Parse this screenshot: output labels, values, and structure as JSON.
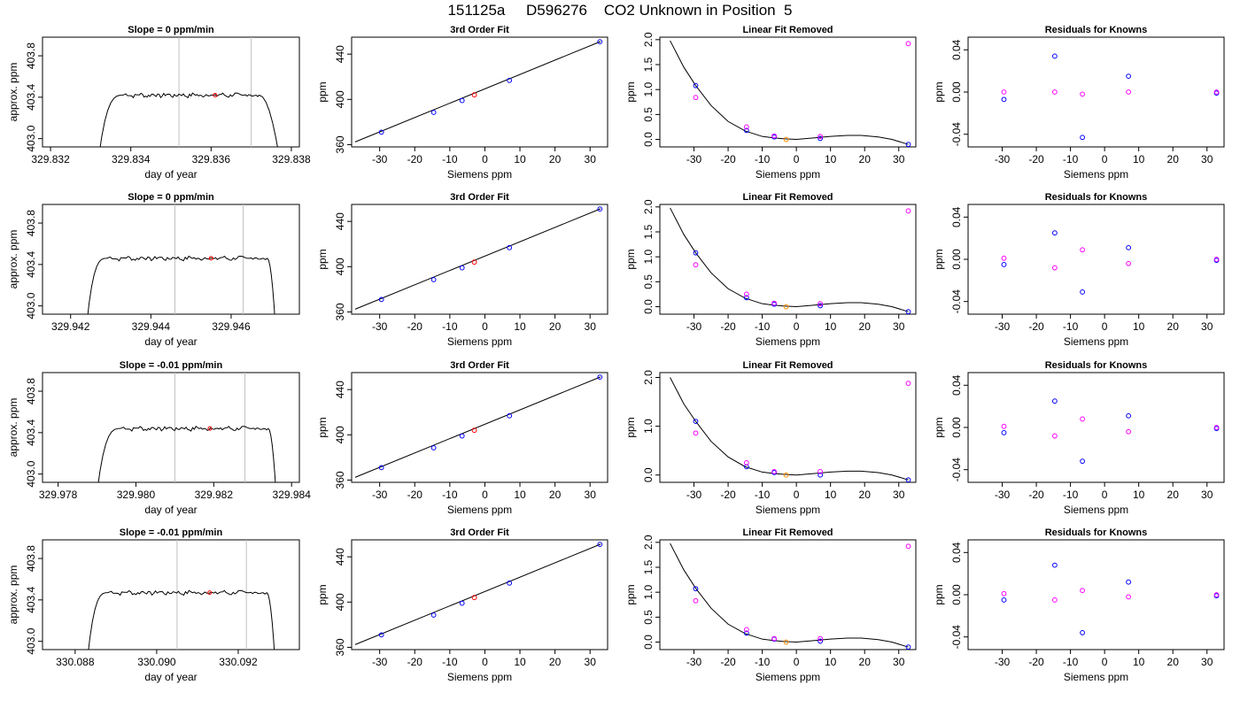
{
  "figure": {
    "title": "151125a     D596276    CO2 Unknown in Position  5"
  },
  "chart_data": [
    {
      "type": "line",
      "panel": "raw-trace",
      "row": 1,
      "title": "Slope =  0  ppm/min",
      "xlabel": "day of year",
      "ylabel": "approx. ppm",
      "xlim": [
        329.8318,
        329.8382
      ],
      "ylim": [
        402.92,
        403.98
      ],
      "xticks": [
        "329.832",
        "329.834",
        "329.836",
        "329.838"
      ],
      "xtick_values": [
        329.832,
        329.834,
        329.836,
        329.838
      ],
      "yticks": [
        "403.0",
        "403.4",
        "403.8"
      ],
      "ytick_values": [
        403.0,
        403.4,
        403.8
      ],
      "trace": {
        "x_start": 329.8332,
        "x_end": 329.8377,
        "plateau": 403.42,
        "rise_end": 329.8338,
        "fall_start": 329.8372
      },
      "vlines": [
        329.8352,
        329.837
      ],
      "marker": {
        "x": 329.8361,
        "y": 403.42
      }
    },
    {
      "type": "line",
      "panel": "raw-trace",
      "row": 2,
      "title": "Slope =  0  ppm/min",
      "xlabel": "day of year",
      "ylabel": "approx. ppm",
      "xlim": [
        329.9413,
        329.9477
      ],
      "ylim": [
        402.92,
        403.98
      ],
      "xticks": [
        "329.942",
        "329.944",
        "329.946"
      ],
      "xtick_values": [
        329.942,
        329.944,
        329.946
      ],
      "yticks": [
        "403.0",
        "403.4",
        "403.8"
      ],
      "ytick_values": [
        403.0,
        403.4,
        403.8
      ],
      "trace": {
        "x_start": 329.9424,
        "x_end": 329.9471,
        "plateau": 403.46,
        "rise_end": 329.9429,
        "fall_start": 329.9469
      },
      "vlines": [
        329.9446,
        329.9463
      ],
      "marker": {
        "x": 329.9455,
        "y": 403.46
      }
    },
    {
      "type": "line",
      "panel": "raw-trace",
      "row": 3,
      "title": "Slope =  -0.01  ppm/min",
      "xlabel": "day of year",
      "ylabel": "approx. ppm",
      "xlim": [
        329.9776,
        329.9842
      ],
      "ylim": [
        402.92,
        403.98
      ],
      "xticks": [
        "329.978",
        "329.980",
        "329.982",
        "329.984"
      ],
      "xtick_values": [
        329.978,
        329.98,
        329.982,
        329.984
      ],
      "yticks": [
        "403.0",
        "403.4",
        "403.8"
      ],
      "ytick_values": [
        403.0,
        403.4,
        403.8
      ],
      "trace": {
        "x_start": 329.979,
        "x_end": 329.9836,
        "plateau": 403.44,
        "rise_end": 329.9796,
        "fall_start": 329.9834
      },
      "vlines": [
        329.981,
        329.9828
      ],
      "marker": {
        "x": 329.9819,
        "y": 403.44
      }
    },
    {
      "type": "line",
      "panel": "raw-trace",
      "row": 4,
      "title": "Slope =  -0.01  ppm/min",
      "xlabel": "day of year",
      "ylabel": "approx. ppm",
      "xlim": [
        330.0872,
        330.0935
      ],
      "ylim": [
        402.92,
        403.98
      ],
      "xticks": [
        "330.088",
        "330.090",
        "330.092"
      ],
      "xtick_values": [
        330.088,
        330.09,
        330.092
      ],
      "yticks": [
        "403.0",
        "403.4",
        "403.8"
      ],
      "ytick_values": [
        403.0,
        403.4,
        403.8
      ],
      "trace": {
        "x_start": 330.0883,
        "x_end": 330.0929,
        "plateau": 403.47,
        "rise_end": 330.0888,
        "fall_start": 330.0927
      },
      "vlines": [
        330.0905,
        330.0922
      ],
      "marker": {
        "x": 330.0913,
        "y": 403.47
      }
    },
    {
      "type": "scatter",
      "panel": "fit",
      "rows": [
        1,
        2,
        3,
        4
      ],
      "title": "3rd Order Fit",
      "xlabel": "Siemens ppm",
      "ylabel": "ppm",
      "xlim": [
        -38,
        35
      ],
      "ylim": [
        358,
        455
      ],
      "xticks": [
        "-30",
        "-20",
        "-10",
        "0",
        "10",
        "20",
        "30"
      ],
      "xtick_values": [
        -30,
        -20,
        -10,
        0,
        10,
        20,
        30
      ],
      "yticks": [
        "360",
        "400",
        "440"
      ],
      "ytick_values": [
        360,
        400,
        440
      ],
      "line": {
        "x_from": -37,
        "y_from": 362.4,
        "x_to": 33,
        "y_to": 451.2
      },
      "knowns": {
        "x": [
          -29.5,
          -14.6,
          -6.5,
          7.0,
          32.8
        ],
        "y": [
          371.0,
          388.5,
          399.0,
          416.8,
          451.0
        ]
      },
      "unknown": {
        "x": [
          -3.0
        ],
        "y": [
          404.0
        ]
      }
    },
    {
      "type": "scatter",
      "panel": "linear-fit-removed",
      "row": 1,
      "title": "Linear Fit Removed",
      "xlabel": "Siemens ppm",
      "ylabel": "ppm",
      "xlim": [
        -40,
        35
      ],
      "ylim": [
        -0.15,
        2.05
      ],
      "xticks": [
        "-30",
        "-20",
        "-10",
        "0",
        "10",
        "20",
        "30"
      ],
      "xtick_values": [
        -30,
        -20,
        -10,
        0,
        10,
        20,
        30
      ],
      "yticks": [
        "0.0",
        "0.5",
        "1.0",
        "1.5",
        "2.0"
      ],
      "ytick_values": [
        0.0,
        0.5,
        1.0,
        1.5,
        2.0
      ],
      "curve_points": [
        [
          -37,
          1.98
        ],
        [
          -33,
          1.45
        ],
        [
          -29.5,
          1.08
        ],
        [
          -25,
          0.68
        ],
        [
          -20,
          0.36
        ],
        [
          -15,
          0.17
        ],
        [
          -10,
          0.06
        ],
        [
          -6.5,
          0.03
        ],
        [
          -3,
          0.01
        ],
        [
          0,
          0.0
        ],
        [
          5,
          0.03
        ],
        [
          10,
          0.06
        ],
        [
          15,
          0.08
        ],
        [
          19,
          0.08
        ],
        [
          24,
          0.05
        ],
        [
          28,
          0.0
        ],
        [
          32.8,
          -0.1
        ]
      ],
      "blue": {
        "x": [
          -29.5,
          -14.6,
          -6.5,
          7.0,
          32.8
        ],
        "y": [
          1.08,
          0.18,
          0.05,
          0.02,
          -0.1
        ]
      },
      "magenta": {
        "x": [
          -29.5,
          -14.6,
          -6.5,
          7.0,
          32.8
        ],
        "y": [
          0.84,
          0.25,
          0.07,
          0.06,
          1.92
        ]
      },
      "unknown": {
        "x": [
          -3.0
        ],
        "y": [
          0.0
        ]
      }
    },
    {
      "type": "scatter",
      "panel": "linear-fit-removed",
      "row": 2,
      "title": "Linear Fit Removed",
      "xlabel": "Siemens ppm",
      "ylabel": "ppm",
      "xlim": [
        -40,
        35
      ],
      "ylim": [
        -0.15,
        2.05
      ],
      "xticks": [
        "-30",
        "-20",
        "-10",
        "0",
        "10",
        "20",
        "30"
      ],
      "xtick_values": [
        -30,
        -20,
        -10,
        0,
        10,
        20,
        30
      ],
      "yticks": [
        "0.0",
        "0.5",
        "1.0",
        "1.5",
        "2.0"
      ],
      "ytick_values": [
        0.0,
        0.5,
        1.0,
        1.5,
        2.0
      ],
      "curve_points": [
        [
          -37,
          1.98
        ],
        [
          -33,
          1.45
        ],
        [
          -29.5,
          1.08
        ],
        [
          -25,
          0.68
        ],
        [
          -20,
          0.36
        ],
        [
          -15,
          0.17
        ],
        [
          -10,
          0.06
        ],
        [
          -6.5,
          0.03
        ],
        [
          -3,
          0.01
        ],
        [
          0,
          0.0
        ],
        [
          5,
          0.03
        ],
        [
          10,
          0.06
        ],
        [
          15,
          0.08
        ],
        [
          19,
          0.08
        ],
        [
          24,
          0.05
        ],
        [
          28,
          0.0
        ],
        [
          32.8,
          -0.1
        ]
      ],
      "blue": {
        "x": [
          -29.5,
          -14.6,
          -6.5,
          7.0,
          32.8
        ],
        "y": [
          1.08,
          0.18,
          0.05,
          0.02,
          -0.1
        ]
      },
      "magenta": {
        "x": [
          -29.5,
          -14.6,
          -6.5,
          7.0,
          32.8
        ],
        "y": [
          0.84,
          0.25,
          0.07,
          0.06,
          1.92
        ]
      },
      "unknown": {
        "x": [
          -3.0
        ],
        "y": [
          0.0
        ]
      }
    },
    {
      "type": "scatter",
      "panel": "linear-fit-removed",
      "row": 3,
      "title": "Linear Fit Removed",
      "xlabel": "Siemens ppm",
      "ylabel": "ppm",
      "xlim": [
        -40,
        35
      ],
      "ylim": [
        -0.15,
        2.1
      ],
      "xticks": [
        "-30",
        "-20",
        "-10",
        "0",
        "10",
        "20",
        "30"
      ],
      "xtick_values": [
        -30,
        -20,
        -10,
        0,
        10,
        20,
        30
      ],
      "yticks": [
        "0.0",
        "1.0",
        "2.0"
      ],
      "ytick_values": [
        0.0,
        1.0,
        2.0
      ],
      "curve_points": [
        [
          -37,
          2.0
        ],
        [
          -33,
          1.46
        ],
        [
          -29.5,
          1.1
        ],
        [
          -25,
          0.69
        ],
        [
          -20,
          0.37
        ],
        [
          -15,
          0.17
        ],
        [
          -10,
          0.06
        ],
        [
          -6.5,
          0.03
        ],
        [
          -3,
          0.01
        ],
        [
          0,
          0.0
        ],
        [
          5,
          0.03
        ],
        [
          10,
          0.06
        ],
        [
          15,
          0.08
        ],
        [
          19,
          0.08
        ],
        [
          24,
          0.05
        ],
        [
          28,
          0.0
        ],
        [
          32.8,
          -0.1
        ]
      ],
      "blue": {
        "x": [
          -29.5,
          -14.6,
          -6.5,
          7.0,
          32.8
        ],
        "y": [
          1.1,
          0.17,
          0.05,
          0.0,
          -0.1
        ]
      },
      "magenta": {
        "x": [
          -29.5,
          -14.6,
          -6.5,
          7.0,
          32.8
        ],
        "y": [
          0.86,
          0.25,
          0.07,
          0.07,
          1.88
        ]
      },
      "unknown": {
        "x": [
          -3.0
        ],
        "y": [
          0.0
        ]
      }
    },
    {
      "type": "scatter",
      "panel": "linear-fit-removed",
      "row": 4,
      "title": "Linear Fit Removed",
      "xlabel": "Siemens ppm",
      "ylabel": "ppm",
      "xlim": [
        -40,
        35
      ],
      "ylim": [
        -0.15,
        2.05
      ],
      "xticks": [
        "-30",
        "-20",
        "-10",
        "0",
        "10",
        "20",
        "30"
      ],
      "xtick_values": [
        -30,
        -20,
        -10,
        0,
        10,
        20,
        30
      ],
      "yticks": [
        "0.0",
        "0.5",
        "1.0",
        "1.5",
        "2.0"
      ],
      "ytick_values": [
        0.0,
        0.5,
        1.0,
        1.5,
        2.0
      ],
      "curve_points": [
        [
          -37,
          1.98
        ],
        [
          -33,
          1.45
        ],
        [
          -29.5,
          1.08
        ],
        [
          -25,
          0.68
        ],
        [
          -20,
          0.36
        ],
        [
          -15,
          0.17
        ],
        [
          -10,
          0.06
        ],
        [
          -6.5,
          0.03
        ],
        [
          -3,
          0.01
        ],
        [
          0,
          0.0
        ],
        [
          5,
          0.03
        ],
        [
          10,
          0.06
        ],
        [
          15,
          0.08
        ],
        [
          19,
          0.08
        ],
        [
          24,
          0.05
        ],
        [
          28,
          0.0
        ],
        [
          32.8,
          -0.1
        ]
      ],
      "blue": {
        "x": [
          -29.5,
          -14.6,
          -6.5,
          7.0,
          32.8
        ],
        "y": [
          1.07,
          0.18,
          0.06,
          0.02,
          -0.1
        ]
      },
      "magenta": {
        "x": [
          -29.5,
          -14.6,
          -6.5,
          7.0,
          32.8
        ],
        "y": [
          0.83,
          0.25,
          0.07,
          0.07,
          1.92
        ]
      },
      "unknown": {
        "x": [
          -3.0
        ],
        "y": [
          0.0
        ]
      }
    },
    {
      "type": "scatter",
      "panel": "residuals",
      "row": 1,
      "title": "Residuals for Knowns",
      "xlabel": "Siemens ppm",
      "ylabel": "ppm",
      "xlim": [
        -40,
        35
      ],
      "ylim": [
        -0.052,
        0.052
      ],
      "xticks": [
        "-30",
        "-20",
        "-10",
        "0",
        "10",
        "20",
        "30"
      ],
      "xtick_values": [
        -30,
        -20,
        -10,
        0,
        10,
        20,
        30
      ],
      "yticks": [
        "-0.04",
        "0.00",
        "0.04"
      ],
      "ytick_values": [
        -0.04,
        0.0,
        0.04
      ],
      "blue": {
        "x": [
          -29.5,
          -14.6,
          -6.5,
          7.0,
          32.8
        ],
        "y": [
          -0.007,
          0.034,
          -0.043,
          0.015,
          -0.001
        ]
      },
      "magenta": {
        "x": [
          -29.5,
          -14.6,
          -6.5,
          7.0,
          32.8
        ],
        "y": [
          0.0,
          0.0,
          -0.002,
          0.0,
          0.0
        ]
      }
    },
    {
      "type": "scatter",
      "panel": "residuals",
      "row": 2,
      "title": "Residuals for Knowns",
      "xlabel": "Siemens ppm",
      "ylabel": "ppm",
      "xlim": [
        -40,
        35
      ],
      "ylim": [
        -0.052,
        0.052
      ],
      "xticks": [
        "-30",
        "-20",
        "-10",
        "0",
        "10",
        "20",
        "30"
      ],
      "xtick_values": [
        -30,
        -20,
        -10,
        0,
        10,
        20,
        30
      ],
      "yticks": [
        "-0.04",
        "0.00",
        "0.04"
      ],
      "ytick_values": [
        -0.04,
        0.0,
        0.04
      ],
      "blue": {
        "x": [
          -29.5,
          -14.6,
          -6.5,
          7.0,
          32.8
        ],
        "y": [
          -0.005,
          0.025,
          -0.031,
          0.011,
          -0.001
        ]
      },
      "magenta": {
        "x": [
          -29.5,
          -14.6,
          -6.5,
          7.0,
          32.8
        ],
        "y": [
          0.001,
          -0.008,
          0.009,
          -0.004,
          0.0
        ]
      }
    },
    {
      "type": "scatter",
      "panel": "residuals",
      "row": 3,
      "title": "Residuals for Knowns",
      "xlabel": "Siemens ppm",
      "ylabel": "ppm",
      "xlim": [
        -40,
        35
      ],
      "ylim": [
        -0.052,
        0.052
      ],
      "xticks": [
        "-30",
        "-20",
        "-10",
        "0",
        "10",
        "20",
        "30"
      ],
      "xtick_values": [
        -30,
        -20,
        -10,
        0,
        10,
        20,
        30
      ],
      "yticks": [
        "-0.04",
        "0.00",
        "0.04"
      ],
      "ytick_values": [
        -0.04,
        0.0,
        0.04
      ],
      "blue": {
        "x": [
          -29.5,
          -14.6,
          -6.5,
          7.0,
          32.8
        ],
        "y": [
          -0.005,
          0.025,
          -0.032,
          0.011,
          -0.001
        ]
      },
      "magenta": {
        "x": [
          -29.5,
          -14.6,
          -6.5,
          7.0,
          32.8
        ],
        "y": [
          0.001,
          -0.008,
          0.008,
          -0.004,
          0.0
        ]
      }
    },
    {
      "type": "scatter",
      "panel": "residuals",
      "row": 4,
      "title": "Residuals for Knowns",
      "xlabel": "Siemens ppm",
      "ylabel": "ppm",
      "xlim": [
        -40,
        35
      ],
      "ylim": [
        -0.052,
        0.052
      ],
      "xticks": [
        "-30",
        "-20",
        "-10",
        "0",
        "10",
        "20",
        "30"
      ],
      "xtick_values": [
        -30,
        -20,
        -10,
        0,
        10,
        20,
        30
      ],
      "yticks": [
        "-0.04",
        "0.00",
        "0.04"
      ],
      "ytick_values": [
        -0.04,
        0.0,
        0.04
      ],
      "blue": {
        "x": [
          -29.5,
          -14.6,
          -6.5,
          7.0,
          32.8
        ],
        "y": [
          -0.005,
          0.028,
          -0.036,
          0.012,
          -0.001
        ]
      },
      "magenta": {
        "x": [
          -29.5,
          -14.6,
          -6.5,
          7.0,
          32.8
        ],
        "y": [
          0.001,
          -0.005,
          0.004,
          -0.002,
          0.0
        ]
      }
    }
  ],
  "colors": {
    "known_points": "#0000ff",
    "magenta_points": "#ff00ff",
    "unknown_point": "#ff0000",
    "unknown_fit_point": "#ff8c00",
    "vlines": "#c0c0c0",
    "line": "#000000"
  }
}
